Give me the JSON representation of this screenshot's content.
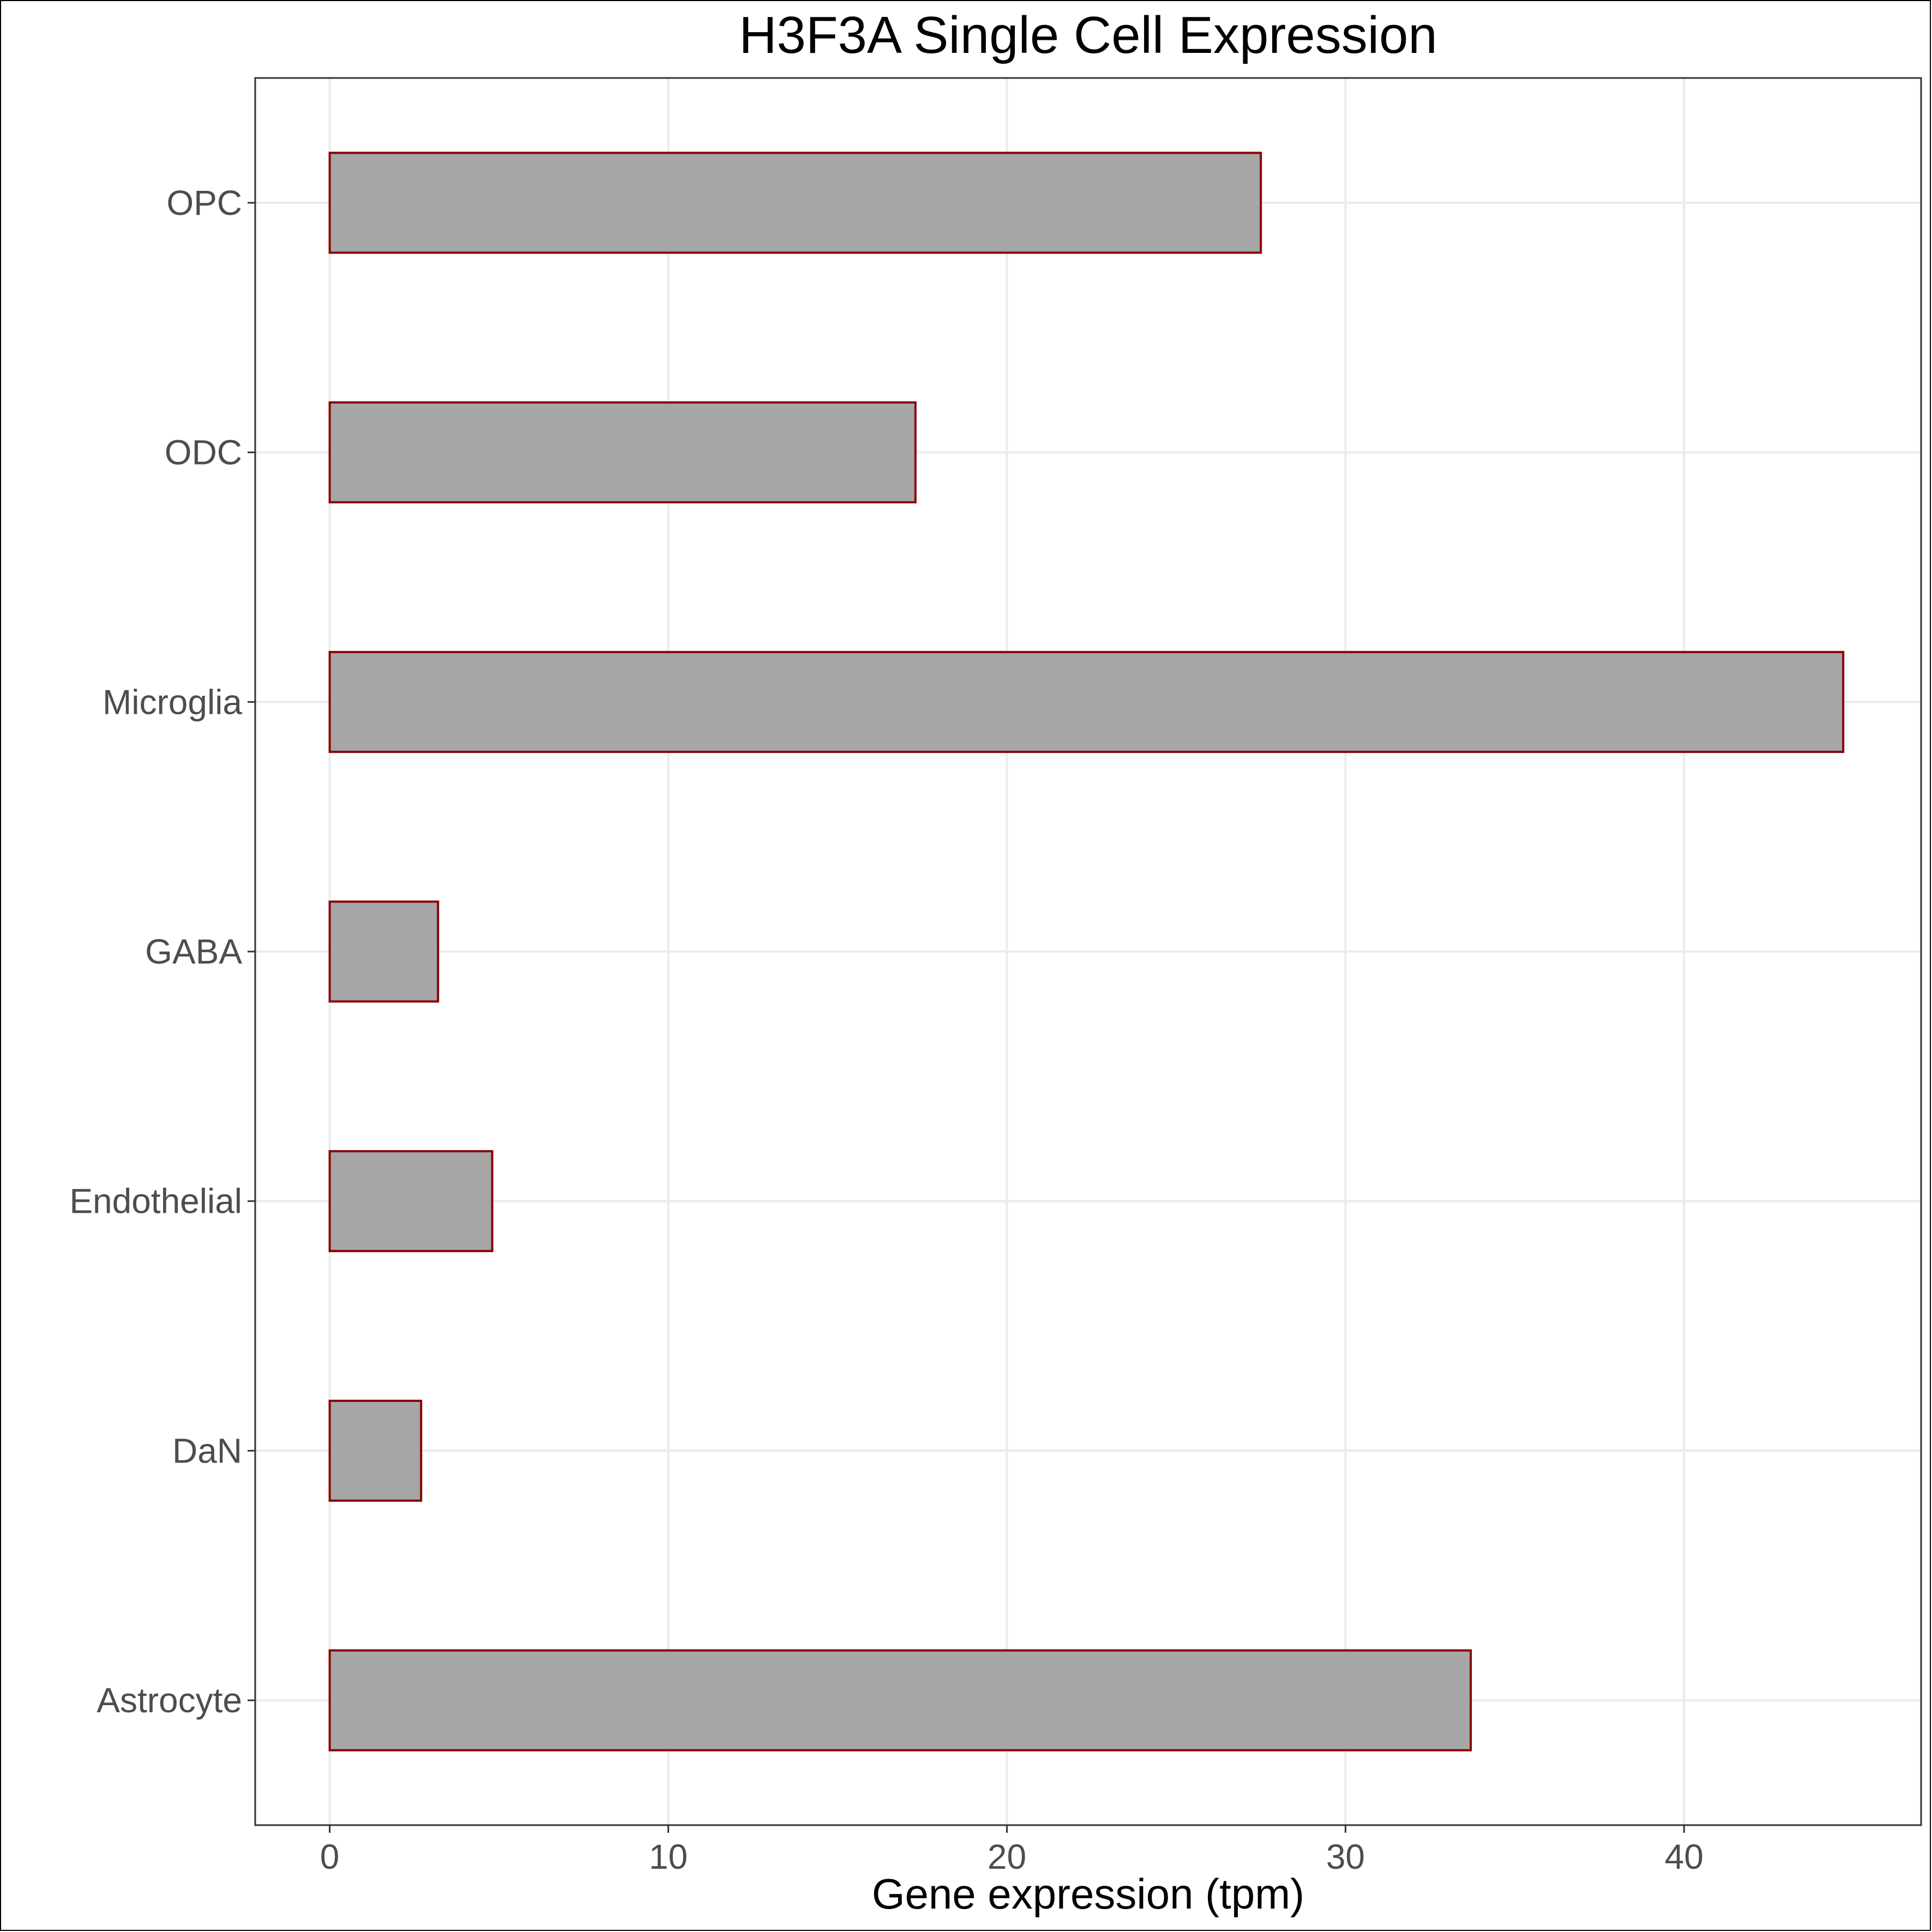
{
  "chart_data": {
    "type": "bar",
    "orientation": "horizontal",
    "title": "H3F3A Single Cell Expression",
    "xlabel": "Gene expression (tpm)",
    "ylabel": "",
    "categories": [
      "Astrocyte",
      "DaN",
      "Endothelial",
      "GABA",
      "Microglia",
      "ODC",
      "OPC"
    ],
    "values": [
      33.7,
      2.7,
      4.8,
      3.2,
      44.7,
      17.3,
      27.5
    ],
    "xlim": [
      -2.2,
      47.0
    ],
    "xticks": [
      0,
      10,
      20,
      30,
      40
    ],
    "grid": true,
    "legend": "none",
    "colors": {
      "bar_fill": "#a6a6a6",
      "bar_stroke": "#8b0000",
      "grid": "#ebebeb",
      "panel_border": "#333333",
      "tick_text": "#4d4d4d",
      "title_text": "#000000"
    }
  }
}
